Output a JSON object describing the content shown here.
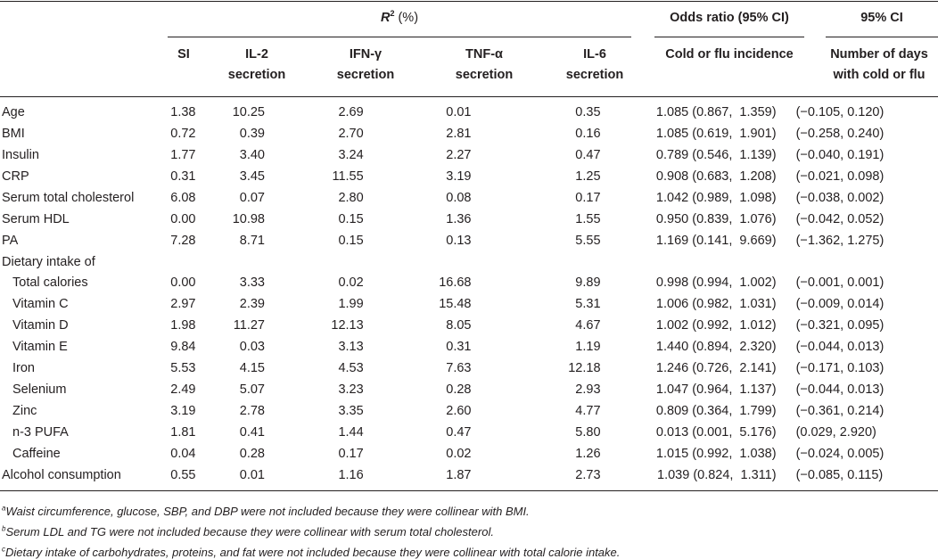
{
  "header": {
    "r2_label": "R",
    "r2_sup": "2",
    "r2_unit": " (%)",
    "odds_label": "Odds ratio (95% CI)",
    "ci_label": "95% CI",
    "cols": {
      "si": "SI",
      "il2_line1": "IL-2",
      "il2_line2": "secretion",
      "ifn_line1": "IFN-γ",
      "ifn_line2": "secretion",
      "tnf_line1": "TNF-α",
      "tnf_line2": "secretion",
      "il6_line1": "IL-6",
      "il6_line2": "secretion",
      "cold_incidence": "Cold or flu incidence",
      "days_line1": "Number of days",
      "days_line2": "with cold or flu"
    }
  },
  "rows": [
    {
      "label": "Age",
      "si": "1.38",
      "il2": "10.25",
      "ifn": "2.69",
      "tnf": "0.01",
      "il6": "0.35",
      "or": "1.085 (0.867,  1.359)",
      "ci": "(−0.105, 0.120)"
    },
    {
      "label": "BMI",
      "si": "0.72",
      "il2": "0.39",
      "ifn": "2.70",
      "tnf": "2.81",
      "il6": "0.16",
      "or": "1.085 (0.619,  1.901)",
      "ci": "(−0.258, 0.240)"
    },
    {
      "label": "Insulin",
      "si": "1.77",
      "il2": "3.40",
      "ifn": "3.24",
      "tnf": "2.27",
      "il6": "0.47",
      "or": "0.789 (0.546,  1.139)",
      "ci": "(−0.040, 0.191)"
    },
    {
      "label": "CRP",
      "si": "0.31",
      "il2": "3.45",
      "ifn": "11.55",
      "tnf": "3.19",
      "il6": "1.25",
      "or": "0.908 (0.683,  1.208)",
      "ci": "(−0.021, 0.098)"
    },
    {
      "label": "Serum total cholesterol",
      "si": "6.08",
      "il2": "0.07",
      "ifn": "2.80",
      "tnf": "0.08",
      "il6": "0.17",
      "or": "1.042 (0.989,  1.098)",
      "ci": "(−0.038, 0.002)"
    },
    {
      "label": "Serum HDL",
      "si": "0.00",
      "il2": "10.98",
      "ifn": "0.15",
      "tnf": "1.36",
      "il6": "1.55",
      "or": "0.950 (0.839,  1.076)",
      "ci": "(−0.042, 0.052)"
    },
    {
      "label": "PA",
      "si": "7.28",
      "il2": "8.71",
      "ifn": "0.15",
      "tnf": "0.13",
      "il6": "5.55",
      "or": "1.169 (0.141,  9.669)",
      "ci": "(−1.362, 1.275)"
    },
    {
      "label": "Dietary intake of",
      "si": "",
      "il2": "",
      "ifn": "",
      "tnf": "",
      "il6": "",
      "or": "",
      "ci": ""
    },
    {
      "label": "Total calories",
      "indent": true,
      "si": "0.00",
      "il2": "3.33",
      "ifn": "0.02",
      "tnf": "16.68",
      "il6": "9.89",
      "or": "0.998 (0.994,  1.002)",
      "ci": "(−0.001, 0.001)"
    },
    {
      "label": "Vitamin C",
      "indent": true,
      "si": "2.97",
      "il2": "2.39",
      "ifn": "1.99",
      "tnf": "15.48",
      "il6": "5.31",
      "or": "1.006 (0.982,  1.031)",
      "ci": "(−0.009, 0.014)"
    },
    {
      "label": "Vitamin D",
      "indent": true,
      "si": "1.98",
      "il2": "11.27",
      "ifn": "12.13",
      "tnf": "8.05",
      "il6": "4.67",
      "or": "1.002 (0.992,  1.012)",
      "ci": "(−0.321, 0.095)"
    },
    {
      "label": "Vitamin E",
      "indent": true,
      "si": "9.84",
      "il2": "0.03",
      "ifn": "3.13",
      "tnf": "0.31",
      "il6": "1.19",
      "or": "1.440 (0.894,  2.320)",
      "ci": "(−0.044, 0.013)"
    },
    {
      "label": "Iron",
      "indent": true,
      "si": "5.53",
      "il2": "4.15",
      "ifn": "4.53",
      "tnf": "7.63",
      "il6": "12.18",
      "or": "1.246 (0.726,  2.141)",
      "ci": "(−0.171, 0.103)"
    },
    {
      "label": "Selenium",
      "indent": true,
      "si": "2.49",
      "il2": "5.07",
      "ifn": "3.23",
      "tnf": "0.28",
      "il6": "2.93",
      "or": "1.047 (0.964,  1.137)",
      "ci": "(−0.044, 0.013)"
    },
    {
      "label": "Zinc",
      "indent": true,
      "si": "3.19",
      "il2": "2.78",
      "ifn": "3.35",
      "tnf": "2.60",
      "il6": "4.77",
      "or": "0.809 (0.364,  1.799)",
      "ci": "(−0.361, 0.214)"
    },
    {
      "label": "n-3 PUFA",
      "indent": true,
      "si": "1.81",
      "il2": "0.41",
      "ifn": "1.44",
      "tnf": "0.47",
      "il6": "5.80",
      "or": "0.013 (0.001,  5.176)",
      "ci": "(0.029, 2.920)"
    },
    {
      "label": "Caffeine",
      "indent": true,
      "si": "0.04",
      "il2": "0.28",
      "ifn": "0.17",
      "tnf": "0.02",
      "il6": "1.26",
      "or": "1.015 (0.992,  1.038)",
      "ci": "(−0.024, 0.005)"
    },
    {
      "label": "Alcohol consumption",
      "si": "0.55",
      "il2": "0.01",
      "ifn": "1.16",
      "tnf": "1.87",
      "il6": "2.73",
      "or": "1.039 (0.824,  1.311)",
      "ci": "(−0.085, 0.115)"
    }
  ],
  "footnotes": [
    {
      "mark": "a",
      "text": "Waist circumference, glucose, SBP, and DBP were not included because they were collinear with BMI."
    },
    {
      "mark": "b",
      "text": "Serum LDL and TG were not included because they were collinear with serum total cholesterol."
    },
    {
      "mark": "c",
      "text": "Dietary intake of carbohydrates, proteins, and fat were not included because they were collinear with total calorie intake."
    }
  ]
}
